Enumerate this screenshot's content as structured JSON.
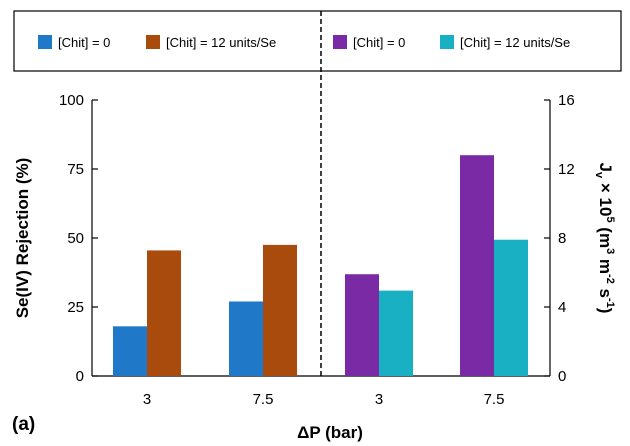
{
  "chart_data": {
    "type": "bar",
    "panel_label": "(a)",
    "xlabel": "ΔP (bar)",
    "groups": [
      {
        "axis": "left",
        "ylabel": "Se(IV) Rejection (%)",
        "ylim": [
          0,
          100
        ],
        "yticks": [
          "0",
          "25",
          "50",
          "75",
          "100"
        ],
        "categories": [
          "3",
          "7.5"
        ],
        "series": [
          {
            "name": "[Chit] = 0",
            "color": "#1f78c8",
            "values": [
              18,
              27
            ]
          },
          {
            "name": "[Chit] = 12 units/Se",
            "color": "#a84b0c",
            "values": [
              45.5,
              47.5
            ]
          }
        ]
      },
      {
        "axis": "right",
        "ylabel_main": "J",
        "ylabel_sub": "v",
        "ylabel_mid": " × 10",
        "ylabel_sup1": "5",
        "ylabel_unit1": " (m",
        "ylabel_sup2": "3",
        "ylabel_unit2": " m",
        "ylabel_sup3": "-2",
        "ylabel_unit3": " s",
        "ylabel_sup4": "-1",
        "ylabel_end": ")",
        "ylim": [
          0,
          16
        ],
        "yticks": [
          "0",
          "4",
          "8",
          "12",
          "16"
        ],
        "categories": [
          "3",
          "7.5"
        ],
        "series": [
          {
            "name": "[Chit] = 0",
            "color": "#7b2aa6",
            "values": [
              5.9,
              12.8
            ]
          },
          {
            "name": "[Chit] = 12 units/Se",
            "color": "#1ab0c4",
            "values": [
              4.95,
              7.9
            ]
          }
        ]
      }
    ]
  }
}
